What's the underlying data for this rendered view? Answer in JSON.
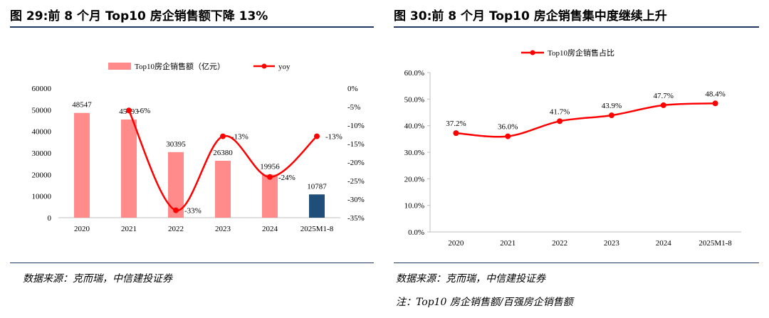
{
  "left_panel": {
    "title": "图 29:前 8 个月 Top10 房企销售额下降 13%",
    "source": "数据来源：克而瑞，中信建投证券"
  },
  "right_panel": {
    "title": "图 30:前 8 个月 Top10 房企销售集中度继续上升",
    "source": "数据来源：克而瑞，中信建投证券",
    "note": "注：Top10 房企销售额/百强房企销售额"
  },
  "colors": {
    "bar": "#ff8b8b",
    "bar_highlight": "#1f4e79",
    "line": "#ff0000",
    "axis": "#bfbfbf",
    "rule": "#1f3864"
  },
  "chart_data": [
    {
      "type": "bar",
      "categories": [
        "2020",
        "2021",
        "2022",
        "2023",
        "2024",
        "2025M1-8"
      ],
      "series": [
        {
          "name": "Top10房企销售额（亿元）",
          "values": [
            48547,
            45493,
            30395,
            26380,
            19956,
            10787
          ],
          "highlight_last": true
        },
        {
          "name": "yoy",
          "type": "line",
          "axis": "right",
          "points": [
            {
              "category": "2021",
              "value": -6,
              "label": "-6%"
            },
            {
              "category": "2022",
              "value": -33,
              "label": "-33%"
            },
            {
              "category": "2023",
              "value": -13,
              "label": "-13%"
            },
            {
              "category": "2024",
              "value": -24,
              "label": "-24%"
            },
            {
              "category": "2025M1-8",
              "value": -13,
              "label": "-13%"
            }
          ]
        }
      ],
      "bar_labels": [
        "48547",
        "45493",
        "30395",
        "26380",
        "19956",
        "10787"
      ],
      "ylim": [
        0,
        60000
      ],
      "y_ticks": [
        "0",
        "10000",
        "20000",
        "30000",
        "40000",
        "50000",
        "60000"
      ],
      "y_tick_values": [
        0,
        10000,
        20000,
        30000,
        40000,
        50000,
        60000
      ],
      "y2lim": [
        -35,
        0
      ],
      "y2_ticks": [
        "-35%",
        "-30%",
        "-25%",
        "-20%",
        "-15%",
        "-10%",
        "-5%",
        "0%"
      ],
      "y2_tick_values": [
        -35,
        -30,
        -25,
        -20,
        -15,
        -10,
        -5,
        0
      ],
      "legend": [
        "Top10房企销售额（亿元）",
        "yoy"
      ],
      "legend_position": "top",
      "grid": false
    },
    {
      "type": "line",
      "categories": [
        "2020",
        "2021",
        "2022",
        "2023",
        "2024",
        "2025M1-8"
      ],
      "series": [
        {
          "name": "Top10房企销售占比",
          "values": [
            37.2,
            36.0,
            41.7,
            43.9,
            47.7,
            48.4
          ],
          "labels": [
            "37.2%",
            "36.0%",
            "41.7%",
            "43.9%",
            "47.7%",
            "48.4%"
          ]
        }
      ],
      "ylim": [
        0,
        60
      ],
      "y_ticks": [
        "0.0%",
        "10.0%",
        "20.0%",
        "30.0%",
        "40.0%",
        "50.0%",
        "60.0%"
      ],
      "y_tick_values": [
        0,
        10,
        20,
        30,
        40,
        50,
        60
      ],
      "legend": [
        "Top10房企销售占比"
      ],
      "legend_position": "top",
      "grid": false
    }
  ]
}
